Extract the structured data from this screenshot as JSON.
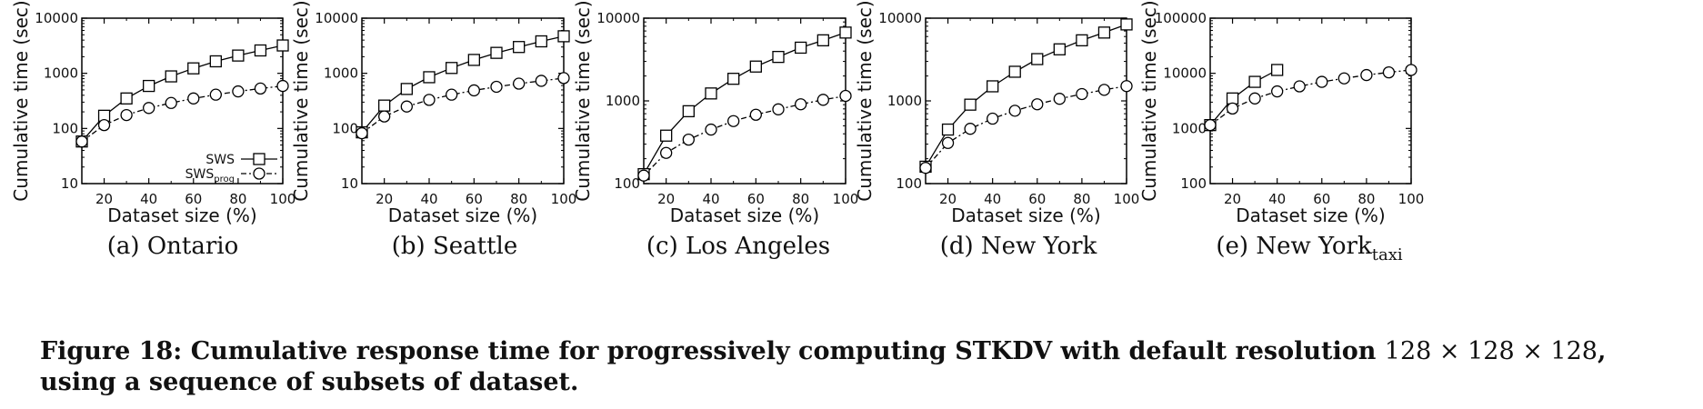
{
  "figure_caption": {
    "label": "Figure 18:",
    "text_before": "Cumulative response time for progressively computing STKDV with default resolution",
    "resolution": "128 × 128 × 128",
    "text_after": ", using a sequence of subsets of dataset."
  },
  "chart_data": [
    {
      "type": "line",
      "panel_caption": "(a) Ontario",
      "caption_subscript": "",
      "xlabel": "Dataset size (%)",
      "ylabel": "Cumulative time (sec)",
      "yscale": "log",
      "xlim": [
        10,
        100
      ],
      "ylim": [
        10,
        10000
      ],
      "xticks": [
        20,
        40,
        60,
        80,
        100
      ],
      "yticks": [
        10,
        100,
        1000,
        10000
      ],
      "ytick_labels": [
        "10",
        "100",
        "1000",
        "10000"
      ],
      "legend": {
        "position": "bottom-right",
        "entries": [
          {
            "label": "SWS",
            "subscript": ""
          },
          {
            "label": "SWS",
            "subscript": "prog"
          }
        ]
      },
      "series": [
        {
          "name": "SWS",
          "marker": "square",
          "line": "solid",
          "x": [
            10,
            20,
            30,
            40,
            50,
            60,
            70,
            80,
            90,
            100
          ],
          "values": [
            58,
            170,
            350,
            590,
            880,
            1230,
            1650,
            2100,
            2600,
            3200
          ]
        },
        {
          "name": "SWSprog",
          "marker": "circle",
          "line": "dashdot",
          "x": [
            10,
            20,
            30,
            40,
            50,
            60,
            70,
            80,
            90,
            100
          ],
          "values": [
            58,
            115,
            175,
            235,
            290,
            350,
            410,
            470,
            530,
            590
          ]
        }
      ]
    },
    {
      "type": "line",
      "panel_caption": "(b) Seattle",
      "caption_subscript": "",
      "xlabel": "Dataset size (%)",
      "ylabel": "Cumulative time (sec)",
      "yscale": "log",
      "xlim": [
        10,
        100
      ],
      "ylim": [
        10,
        10000
      ],
      "xticks": [
        20,
        40,
        60,
        80,
        100
      ],
      "yticks": [
        10,
        100,
        1000,
        10000
      ],
      "ytick_labels": [
        "10",
        "100",
        "1000",
        "10000"
      ],
      "legend": null,
      "series": [
        {
          "name": "SWS",
          "marker": "square",
          "line": "solid",
          "x": [
            10,
            20,
            30,
            40,
            50,
            60,
            70,
            80,
            90,
            100
          ],
          "values": [
            85,
            260,
            520,
            850,
            1250,
            1750,
            2350,
            3000,
            3800,
            4700
          ]
        },
        {
          "name": "SWSprog",
          "marker": "circle",
          "line": "dashdot",
          "x": [
            10,
            20,
            30,
            40,
            50,
            60,
            70,
            80,
            90,
            100
          ],
          "values": [
            82,
            165,
            250,
            330,
            410,
            490,
            570,
            650,
            730,
            820
          ]
        }
      ]
    },
    {
      "type": "line",
      "panel_caption": "(c) Los Angeles",
      "caption_subscript": "",
      "xlabel": "Dataset size (%)",
      "ylabel": "Cumulative time (sec)",
      "yscale": "log",
      "xlim": [
        10,
        100
      ],
      "ylim": [
        100,
        10000
      ],
      "xticks": [
        20,
        40,
        60,
        80,
        100
      ],
      "yticks": [
        100,
        1000,
        10000
      ],
      "ytick_labels": [
        "100",
        "1000",
        "10000"
      ],
      "legend": null,
      "series": [
        {
          "name": "SWS",
          "marker": "square",
          "line": "solid",
          "x": [
            10,
            20,
            30,
            40,
            50,
            60,
            70,
            80,
            90,
            100
          ],
          "values": [
            130,
            380,
            750,
            1230,
            1850,
            2600,
            3400,
            4400,
            5400,
            6700
          ]
        },
        {
          "name": "SWSprog",
          "marker": "circle",
          "line": "dashdot",
          "x": [
            10,
            20,
            30,
            40,
            50,
            60,
            70,
            80,
            90,
            100
          ],
          "values": [
            125,
            235,
            340,
            450,
            570,
            680,
            790,
            910,
            1030,
            1150
          ]
        }
      ]
    },
    {
      "type": "line",
      "panel_caption": "(d) New York",
      "caption_subscript": "",
      "xlabel": "Dataset size (%)",
      "ylabel": "Cumulative time (sec)",
      "yscale": "log",
      "xlim": [
        10,
        100
      ],
      "ylim": [
        100,
        10000
      ],
      "xticks": [
        20,
        40,
        60,
        80,
        100
      ],
      "yticks": [
        100,
        1000,
        10000
      ],
      "ytick_labels": [
        "100",
        "1000",
        "10000"
      ],
      "legend": null,
      "series": [
        {
          "name": "SWS",
          "marker": "square",
          "line": "solid",
          "x": [
            10,
            20,
            30,
            40,
            50,
            60,
            70,
            80,
            90,
            100
          ],
          "values": [
            160,
            450,
            900,
            1500,
            2250,
            3200,
            4200,
            5400,
            6700,
            8400
          ]
        },
        {
          "name": "SWSprog",
          "marker": "circle",
          "line": "dashdot",
          "x": [
            10,
            20,
            30,
            40,
            50,
            60,
            70,
            80,
            90,
            100
          ],
          "values": [
            155,
            310,
            460,
            610,
            760,
            910,
            1060,
            1210,
            1360,
            1510
          ]
        }
      ]
    },
    {
      "type": "line",
      "panel_caption": "(e) New York",
      "caption_subscript": "taxi",
      "xlabel": "Dataset size (%)",
      "ylabel": "Cumulative time (sec)",
      "yscale": "log",
      "xlim": [
        10,
        100
      ],
      "ylim": [
        100,
        100000
      ],
      "xticks": [
        20,
        40,
        60,
        80,
        100
      ],
      "yticks": [
        100,
        1000,
        10000,
        100000
      ],
      "ytick_labels": [
        "100",
        "1000",
        "10000",
        "100000"
      ],
      "legend": null,
      "series": [
        {
          "name": "SWS",
          "marker": "square",
          "line": "solid",
          "x": [
            10,
            20,
            30,
            40
          ],
          "values": [
            1150,
            3500,
            7000,
            11500
          ]
        },
        {
          "name": "SWSprog",
          "marker": "circle",
          "line": "dashdot",
          "x": [
            10,
            20,
            30,
            40,
            50,
            60,
            70,
            80,
            90,
            100
          ],
          "values": [
            1150,
            2300,
            3500,
            4700,
            5800,
            7000,
            8100,
            9300,
            10400,
            11500
          ]
        }
      ]
    }
  ]
}
